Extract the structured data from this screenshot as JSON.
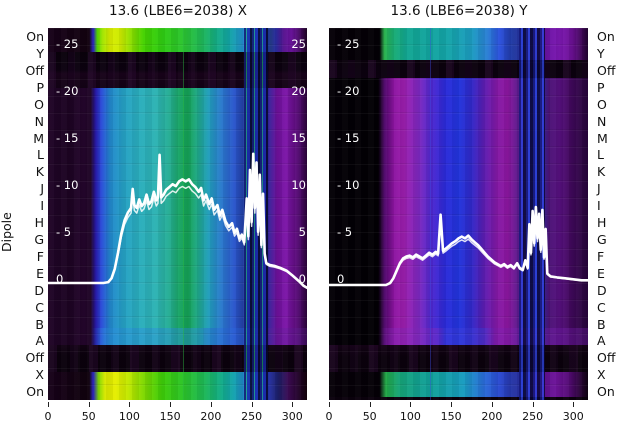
{
  "panels": [
    {
      "title": "13.6 (LBE6=2038) X",
      "y_tick_labels_left": [
        "- 25",
        "- 20",
        "- 15",
        "- 10",
        "- 5",
        "0"
      ],
      "y_tick_labels_right": [
        "25",
        "20",
        "15",
        "10",
        "5",
        "0"
      ],
      "x_tick_labels": [
        "0",
        "50",
        "100",
        "150",
        "200",
        "250",
        "300"
      ]
    },
    {
      "title": "13.6 (LBE6=2038) Y",
      "y_tick_labels_left": [
        "- 25",
        "- 20",
        "- 15",
        "- 10",
        "- 5",
        "0"
      ],
      "y_tick_labels_right": [],
      "x_tick_labels": [
        "0",
        "50",
        "100",
        "150",
        "200",
        "250",
        "300"
      ]
    }
  ],
  "dipole_axis": {
    "label": "Dipole",
    "labels": [
      "On",
      "Y",
      "Off",
      "P",
      "O",
      "N",
      "M",
      "L",
      "K",
      "J",
      "I",
      "H",
      "G",
      "F",
      "E",
      "D",
      "C",
      "B",
      "A",
      "Off",
      "X",
      "On"
    ]
  },
  "colors": {
    "background": "#ffffff",
    "curve": "#ffffff",
    "panel_dark": "#0b010d",
    "tick_text_inner": "#ffffff",
    "axis_text": "#111111"
  },
  "chart_data": [
    {
      "type": "heatmap",
      "title": "13.6 (LBE6=2038) X",
      "xlim": [
        0,
        318
      ],
      "x_ticks": [
        0,
        50,
        100,
        150,
        200,
        250,
        300
      ],
      "y_ticks": [
        25,
        20,
        15,
        10,
        5,
        0
      ],
      "row_axis_label": "Dipole",
      "rows": [
        "On",
        "Y",
        "Off",
        "P",
        "O",
        "N",
        "M",
        "L",
        "K",
        "J",
        "I",
        "H",
        "G",
        "F",
        "E",
        "D",
        "C",
        "B",
        "A",
        "Off",
        "X",
        "On"
      ],
      "heatmap_bands": [
        {
          "rows": "On/Y",
          "palette_left_to_right": [
            "#170119",
            "#55d800",
            "#d8ec00",
            "#2fcc12",
            "#14ac84",
            "#2a6cd8",
            "#56128e"
          ]
        },
        {
          "rows": "Off",
          "palette_left_to_right": [
            "#09010b",
            "#170219"
          ]
        },
        {
          "rows": "P-A",
          "palette_left_to_right": [
            "#1e0424",
            "#2a49d8",
            "#25a0c4",
            "#2db3b3",
            "#14a054",
            "#219ebc",
            "#2a55cc",
            "#232c96",
            "#6e109a",
            "#44085e"
          ]
        },
        {
          "rows": "Off",
          "palette_left_to_right": [
            "#0a010c",
            "#120214"
          ]
        },
        {
          "rows": "X/On",
          "palette_left_to_right": [
            "#170119",
            "#d8e800",
            "#3ecc08",
            "#12ac88",
            "#2376cc",
            "#3c0a52"
          ]
        }
      ],
      "line_series": {
        "name": "profile-X",
        "points": [
          [
            0,
            0
          ],
          [
            40,
            0
          ],
          [
            68,
            0
          ],
          [
            74,
            0.1
          ],
          [
            78,
            0.5
          ],
          [
            82,
            1.5
          ],
          [
            86,
            3.2
          ],
          [
            90,
            5.2
          ],
          [
            94,
            6.6
          ],
          [
            98,
            7.4
          ],
          [
            102,
            7.9
          ],
          [
            104,
            9.9
          ],
          [
            106,
            8.2
          ],
          [
            109,
            7.9
          ],
          [
            112,
            8.8
          ],
          [
            115,
            8.1
          ],
          [
            118,
            8.4
          ],
          [
            121,
            9.3
          ],
          [
            124,
            8.3
          ],
          [
            127,
            8.6
          ],
          [
            130,
            9.6
          ],
          [
            133,
            8.7
          ],
          [
            135,
            9.0
          ],
          [
            137,
            13.5
          ],
          [
            139,
            9.0
          ],
          [
            142,
            9.3
          ],
          [
            145,
            9.8
          ],
          [
            149,
            10.1
          ],
          [
            153,
            10.4
          ],
          [
            157,
            10.2
          ],
          [
            161,
            10.7
          ],
          [
            165,
            10.9
          ],
          [
            169,
            10.7
          ],
          [
            173,
            10.9
          ],
          [
            177,
            10.4
          ],
          [
            181,
            10.1
          ],
          [
            185,
            9.6
          ],
          [
            188,
            10.0
          ],
          [
            191,
            8.7
          ],
          [
            194,
            9.3
          ],
          [
            198,
            8.3
          ],
          [
            201,
            8.9
          ],
          [
            204,
            7.7
          ],
          [
            208,
            8.2
          ],
          [
            211,
            7.1
          ],
          [
            214,
            7.7
          ],
          [
            218,
            6.5
          ],
          [
            222,
            5.9
          ],
          [
            226,
            6.3
          ],
          [
            229,
            5.3
          ],
          [
            232,
            5.7
          ],
          [
            235,
            4.7
          ],
          [
            238,
            5.1
          ],
          [
            241,
            4.3
          ],
          [
            244,
            8.9
          ],
          [
            246,
            4.9
          ],
          [
            248,
            11.9
          ],
          [
            250,
            6.4
          ],
          [
            252,
            13.6
          ],
          [
            254,
            7.9
          ],
          [
            256,
            12.7
          ],
          [
            258,
            5.4
          ],
          [
            260,
            11.4
          ],
          [
            262,
            4.0
          ],
          [
            264,
            9.4
          ],
          [
            266,
            3.1
          ],
          [
            268,
            2.1
          ],
          [
            272,
            1.9
          ],
          [
            278,
            1.8
          ],
          [
            285,
            1.6
          ],
          [
            293,
            1.3
          ],
          [
            300,
            0.8
          ],
          [
            308,
            0.2
          ],
          [
            314,
            -0.3
          ],
          [
            318,
            -0.5
          ]
        ]
      }
    },
    {
      "type": "heatmap",
      "title": "13.6 (LBE6=2038) Y",
      "xlim": [
        0,
        318
      ],
      "x_ticks": [
        0,
        50,
        100,
        150,
        200,
        250,
        300
      ],
      "y_ticks": [
        25,
        20,
        15,
        10,
        5,
        0
      ],
      "row_axis_label": "Dipole",
      "rows": [
        "On",
        "Y",
        "Off",
        "P",
        "O",
        "N",
        "M",
        "L",
        "K",
        "J",
        "I",
        "H",
        "G",
        "F",
        "E",
        "D",
        "C",
        "B",
        "A",
        "Off",
        "X",
        "On"
      ],
      "heatmap_bands": [
        {
          "rows": "On/Y",
          "palette_left_to_right": [
            "#030005",
            "#2ab44e",
            "#12a49e",
            "#1c9cc0",
            "#2b50dc",
            "#7c18b2",
            "#200330"
          ]
        },
        {
          "rows": "Off",
          "palette_left_to_right": [
            "#0a010c",
            "#0c0110"
          ]
        },
        {
          "rows": "P-A",
          "palette_left_to_right": [
            "#020004",
            "#8c14a0",
            "#4a28d0",
            "#2234dc",
            "#8418a4",
            "#2a30ae",
            "#56107e",
            "#26043a"
          ]
        },
        {
          "rows": "Off",
          "palette_left_to_right": [
            "#0a010c",
            "#140216"
          ]
        },
        {
          "rows": "X/On",
          "palette_left_to_right": [
            "#040006",
            "#22a846",
            "#12a0a0",
            "#2a6ad8",
            "#6e149a",
            "#0e0110"
          ]
        }
      ],
      "line_series": {
        "name": "profile-Y",
        "points": [
          [
            0,
            0
          ],
          [
            50,
            0
          ],
          [
            70,
            0
          ],
          [
            75,
            0.2
          ],
          [
            79,
            0.7
          ],
          [
            83,
            1.5
          ],
          [
            87,
            2.3
          ],
          [
            91,
            2.8
          ],
          [
            95,
            3.0
          ],
          [
            99,
            3.1
          ],
          [
            103,
            2.9
          ],
          [
            107,
            3.2
          ],
          [
            111,
            3.0
          ],
          [
            115,
            2.8
          ],
          [
            119,
            3.1
          ],
          [
            123,
            3.4
          ],
          [
            127,
            3.2
          ],
          [
            131,
            3.5
          ],
          [
            134,
            3.3
          ],
          [
            137,
            7.4
          ],
          [
            140,
            3.6
          ],
          [
            143,
            3.8
          ],
          [
            147,
            4.1
          ],
          [
            151,
            4.4
          ],
          [
            155,
            4.6
          ],
          [
            159,
            4.9
          ],
          [
            163,
            5.1
          ],
          [
            167,
            4.9
          ],
          [
            171,
            5.2
          ],
          [
            175,
            4.8
          ],
          [
            179,
            4.5
          ],
          [
            183,
            4.2
          ],
          [
            187,
            3.8
          ],
          [
            191,
            3.4
          ],
          [
            195,
            3.0
          ],
          [
            199,
            2.7
          ],
          [
            203,
            2.4
          ],
          [
            207,
            2.2
          ],
          [
            211,
            2.0
          ],
          [
            215,
            2.2
          ],
          [
            219,
            1.9
          ],
          [
            223,
            2.1
          ],
          [
            227,
            1.8
          ],
          [
            231,
            2.3
          ],
          [
            234,
            1.8
          ],
          [
            238,
            1.6
          ],
          [
            241,
            2.6
          ],
          [
            244,
            1.8
          ],
          [
            246,
            6.4
          ],
          [
            248,
            3.4
          ],
          [
            250,
            7.8
          ],
          [
            252,
            4.4
          ],
          [
            254,
            8.2
          ],
          [
            256,
            4.9
          ],
          [
            258,
            7.5
          ],
          [
            260,
            3.7
          ],
          [
            262,
            7.9
          ],
          [
            264,
            2.9
          ],
          [
            266,
            5.9
          ],
          [
            268,
            1.2
          ],
          [
            272,
            0.9
          ],
          [
            280,
            0.8
          ],
          [
            290,
            0.7
          ],
          [
            300,
            0.6
          ],
          [
            310,
            0.5
          ],
          [
            318,
            0.5
          ]
        ]
      }
    }
  ]
}
